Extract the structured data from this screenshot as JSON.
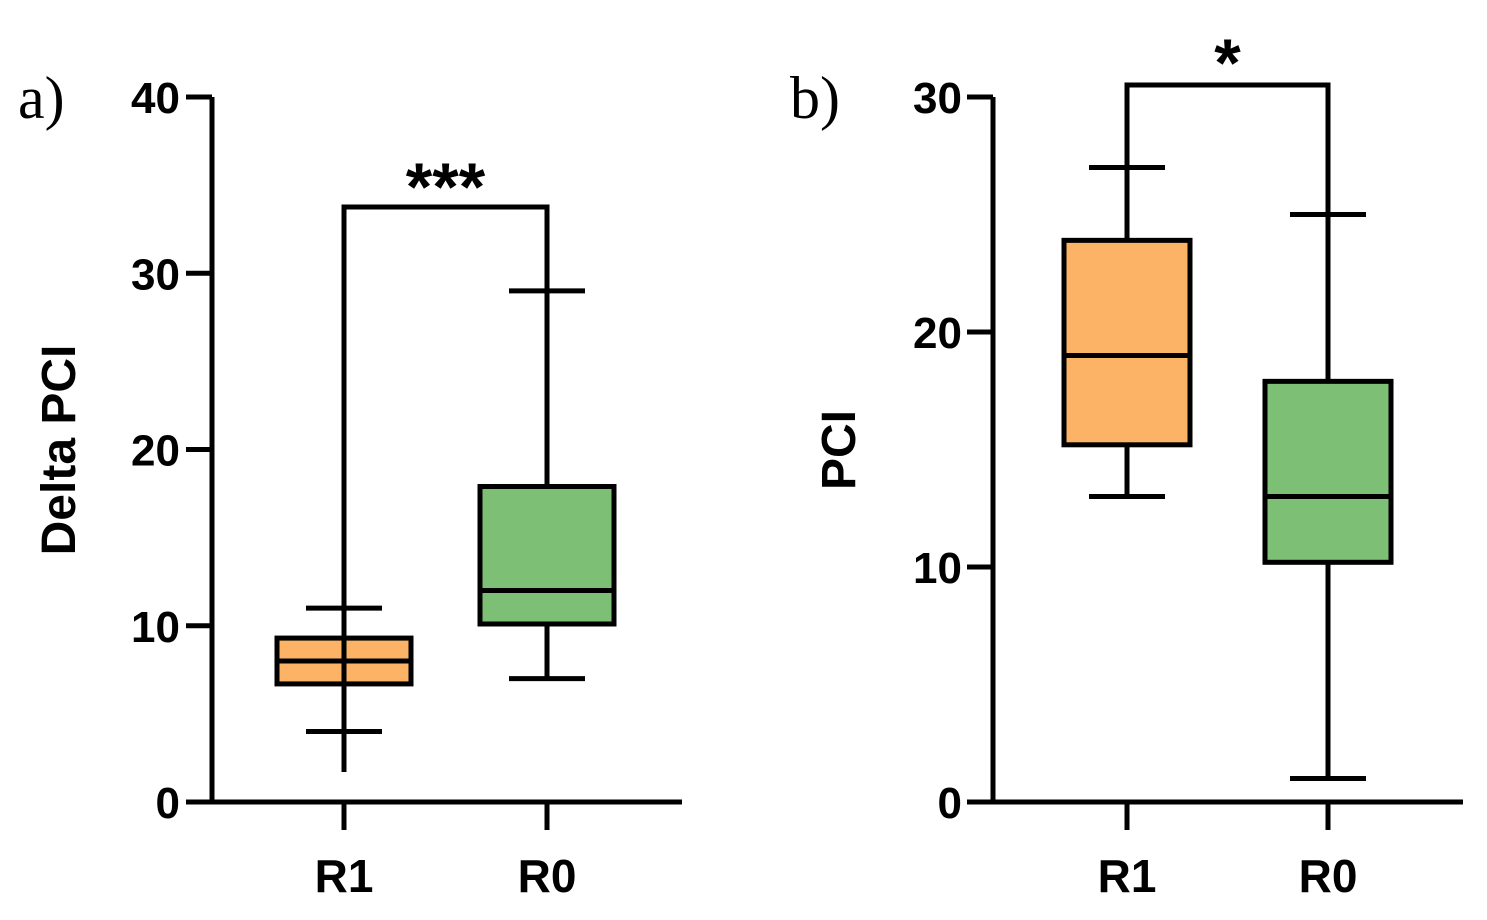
{
  "colors": {
    "r1": "#FDB366",
    "r0": "#7DBF75",
    "stroke": "#000000"
  },
  "chart_data": [
    {
      "type": "box",
      "panel_label": "a)",
      "ylabel": "Delta PCI",
      "ylim": [
        0,
        40
      ],
      "yticks": [
        "0",
        "10",
        "20",
        "30",
        "40"
      ],
      "categories": [
        "R1",
        "R0"
      ],
      "boxes": [
        {
          "category": "R1",
          "min": 4,
          "q1": 6.7,
          "median": 8,
          "q3": 9.3,
          "max": 11
        },
        {
          "category": "R0",
          "min": 7,
          "q1": 10.1,
          "median": 12,
          "q3": 17.9,
          "max": 29
        }
      ],
      "significance": {
        "label": "***",
        "between": [
          "R1",
          "R0"
        ]
      }
    },
    {
      "type": "box",
      "panel_label": "b)",
      "ylabel": "PCI",
      "ylim": [
        0,
        30
      ],
      "yticks": [
        "0",
        "10",
        "20",
        "30"
      ],
      "categories": [
        "R1",
        "R0"
      ],
      "boxes": [
        {
          "category": "R1",
          "min": 13,
          "q1": 15.2,
          "median": 19,
          "q3": 23.9,
          "max": 27
        },
        {
          "category": "R0",
          "min": 1,
          "q1": 10.2,
          "median": 13,
          "q3": 17.9,
          "max": 25
        }
      ],
      "significance": {
        "label": "*",
        "between": [
          "R1",
          "R0"
        ]
      }
    }
  ]
}
